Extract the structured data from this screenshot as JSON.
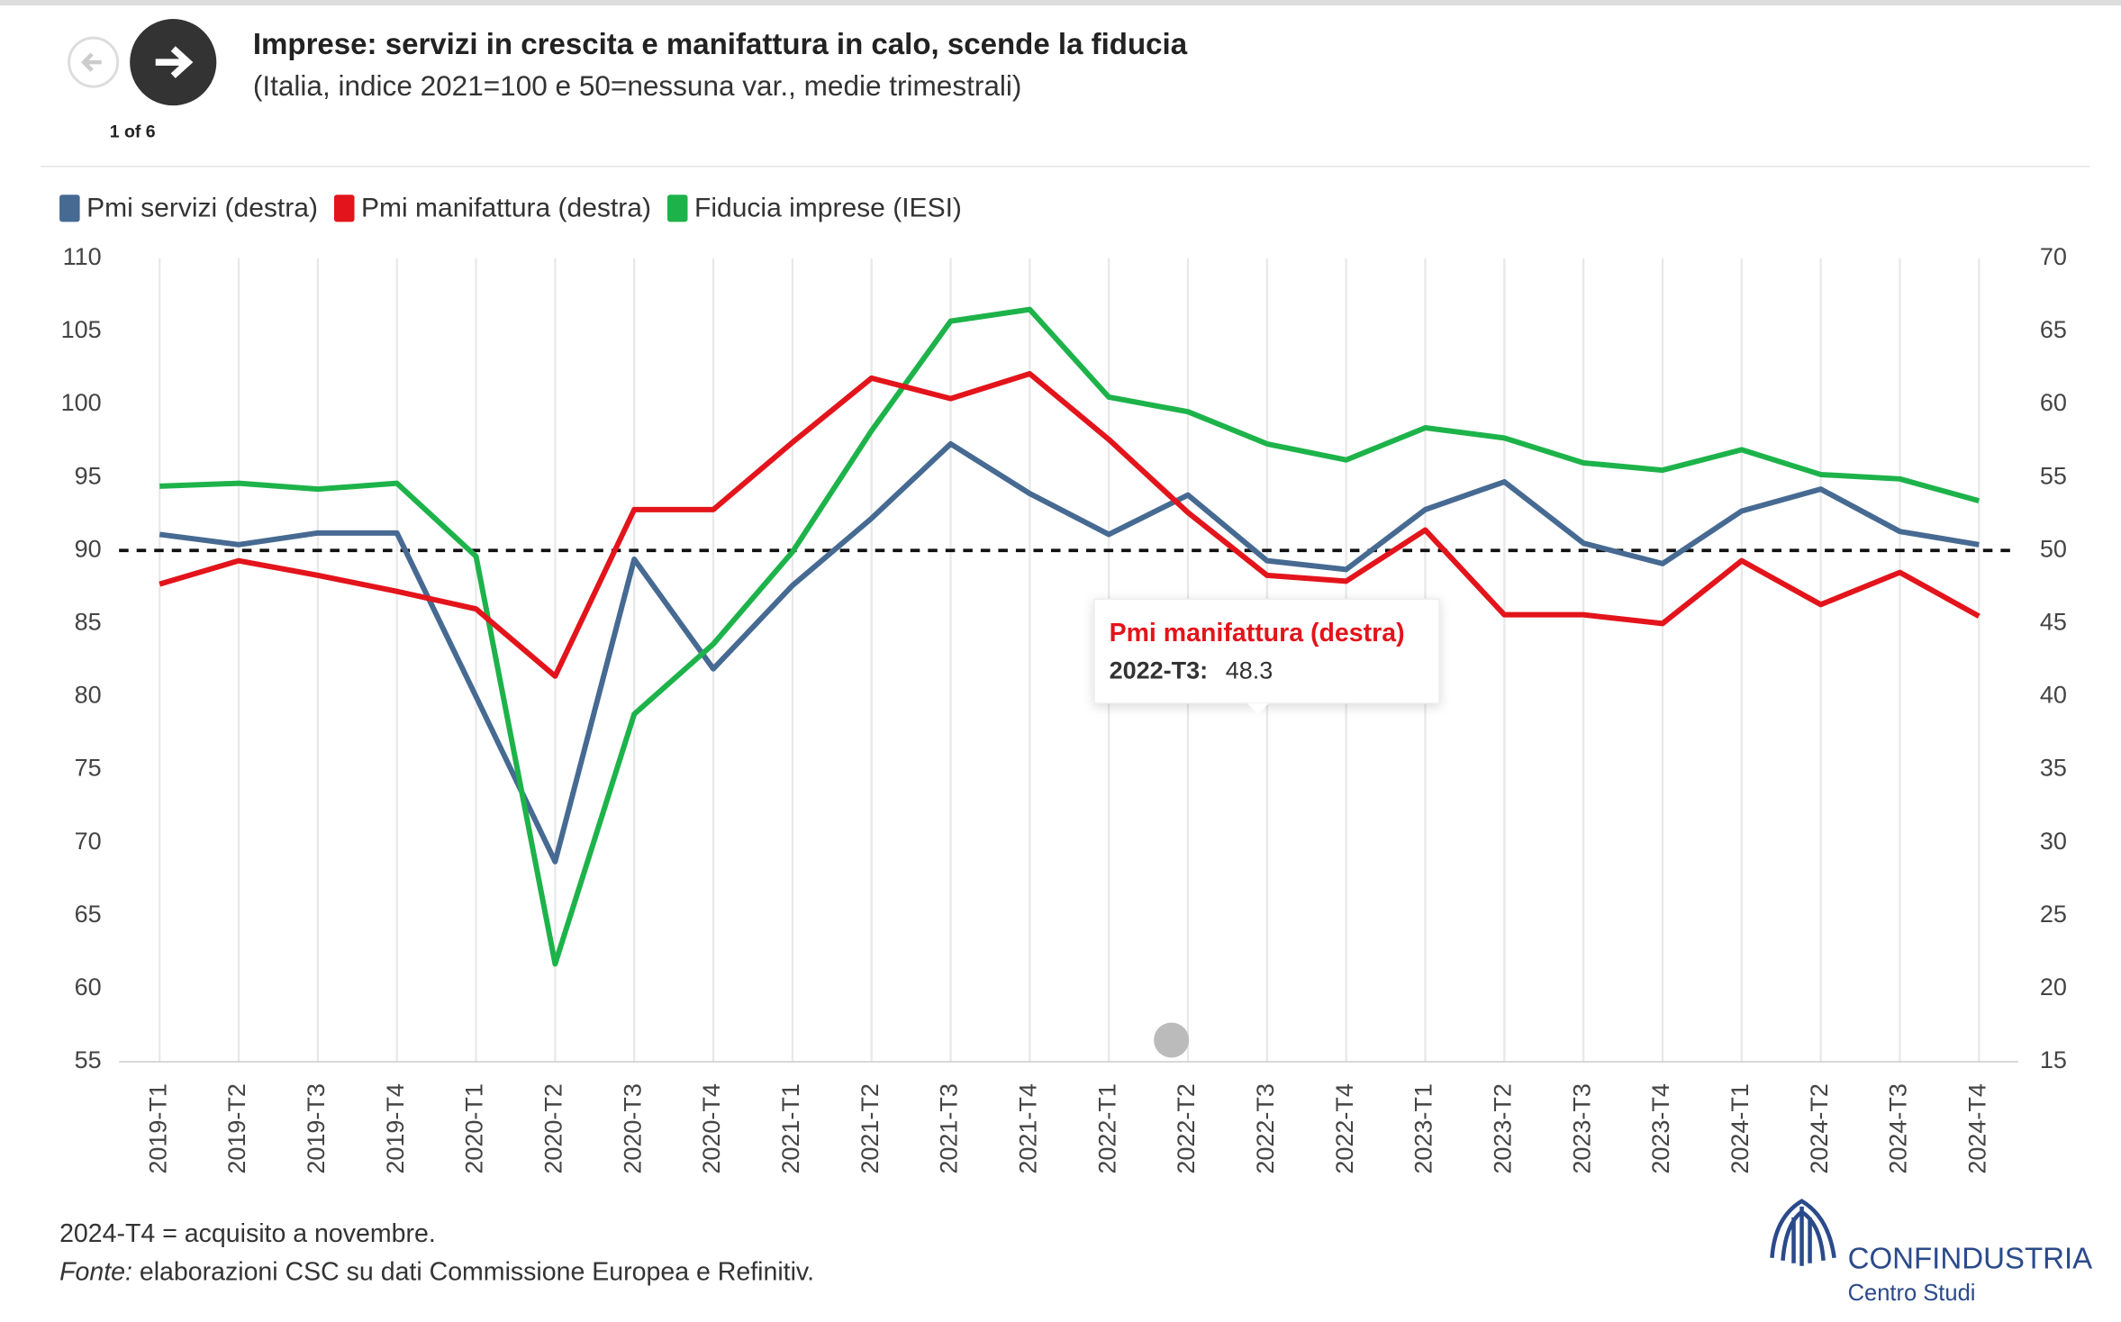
{
  "nav": {
    "counter": "1 of 6"
  },
  "chart_data": {
    "type": "line",
    "title": "Imprese: servizi in crescita e manifattura in calo, scende la fiducia",
    "subtitle": "(Italia, indice 2021=100 e 50=nessuna var., medie trimestrali)",
    "categories": [
      "2019-T1",
      "2019-T2",
      "2019-T3",
      "2019-T4",
      "2020-T1",
      "2020-T2",
      "2020-T3",
      "2020-T4",
      "2021-T1",
      "2021-T2",
      "2021-T3",
      "2021-T4",
      "2022-T1",
      "2022-T2",
      "2022-T3",
      "2022-T4",
      "2023-T1",
      "2023-T2",
      "2023-T3",
      "2023-T4",
      "2024-T1",
      "2024-T2",
      "2024-T3",
      "2024-T4"
    ],
    "series": [
      {
        "name": "Pmi servizi (destra)",
        "color": "#466a92",
        "axis": "y2",
        "values": [
          51.1,
          50.4,
          51.2,
          51.2,
          40.0,
          28.7,
          49.4,
          41.9,
          47.6,
          52.2,
          57.3,
          53.9,
          51.1,
          53.8,
          49.3,
          48.7,
          52.8,
          54.7,
          50.5,
          49.1,
          52.7,
          54.2,
          51.3,
          50.4
        ]
      },
      {
        "name": "Pmi manifattura (destra)",
        "color": "#e3141b",
        "axis": "y2",
        "values": [
          47.7,
          49.3,
          48.3,
          47.2,
          46.0,
          41.4,
          52.8,
          52.8,
          57.4,
          61.8,
          60.4,
          62.1,
          57.6,
          52.6,
          48.3,
          47.9,
          51.4,
          45.6,
          45.6,
          45.0,
          49.3,
          46.3,
          48.5,
          45.5
        ]
      },
      {
        "name": "Fiducia imprese (IESI)",
        "color": "#1db34a",
        "axis": "y",
        "values": [
          94.4,
          94.6,
          94.2,
          94.6,
          89.6,
          61.7,
          78.8,
          83.6,
          89.9,
          98.2,
          105.7,
          106.5,
          100.5,
          99.5,
          97.3,
          96.2,
          98.4,
          97.7,
          96.0,
          95.5,
          96.9,
          95.2,
          94.9,
          93.4
        ]
      }
    ],
    "ylim": [
      55,
      110
    ],
    "yticks": [
      55,
      60,
      65,
      70,
      75,
      80,
      85,
      90,
      95,
      100,
      105,
      110
    ],
    "y2lim": [
      15,
      70
    ],
    "y2ticks": [
      15,
      20,
      25,
      30,
      35,
      40,
      45,
      50,
      55,
      60,
      65,
      70
    ],
    "grid": "x",
    "legend": "top-left",
    "reference_line": {
      "value": 50,
      "axis": "y2"
    },
    "tooltip": {
      "title": "Pmi manifattura (destra)",
      "label": "2022-T3:",
      "value": 48.3
    }
  },
  "notes": {
    "line1": "2024-T4 = acquisito a novembre.",
    "source_label": "Fonte:",
    "source_text": " elaborazioni CSC su dati Commissione Europea e Refinitiv."
  },
  "logo": {
    "name": "CONFINDUSTRIA",
    "sub": "Centro Studi"
  }
}
